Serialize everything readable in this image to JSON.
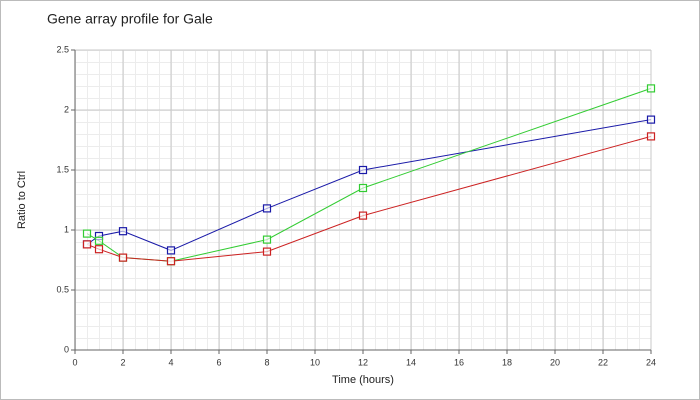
{
  "chart_data": {
    "type": "line",
    "title": "Gene array profile for Gale",
    "x_label": "Time (hours)",
    "y_label": "Ratio to Ctrl",
    "x": [
      0.5,
      1,
      2,
      4,
      8,
      12,
      24
    ],
    "series": [
      {
        "color": "#1a1aa8",
        "values": [
          0.88,
          0.95,
          0.99,
          0.83,
          1.18,
          1.5,
          1.92
        ]
      },
      {
        "color": "#33cc33",
        "values": [
          0.97,
          0.91,
          0.77,
          0.74,
          0.92,
          1.35,
          2.18
        ]
      },
      {
        "color": "#cc2222",
        "values": [
          0.88,
          0.84,
          0.77,
          0.74,
          0.82,
          1.12,
          1.78
        ]
      }
    ],
    "xlim": [
      0,
      24
    ],
    "xticks": [
      0,
      2,
      4,
      6,
      8,
      10,
      12,
      14,
      16,
      18,
      20,
      22,
      24
    ],
    "ylim": [
      0,
      2.5
    ],
    "yticks": [
      0,
      0.5,
      1,
      1.5,
      2,
      2.5
    ],
    "grid": true
  }
}
